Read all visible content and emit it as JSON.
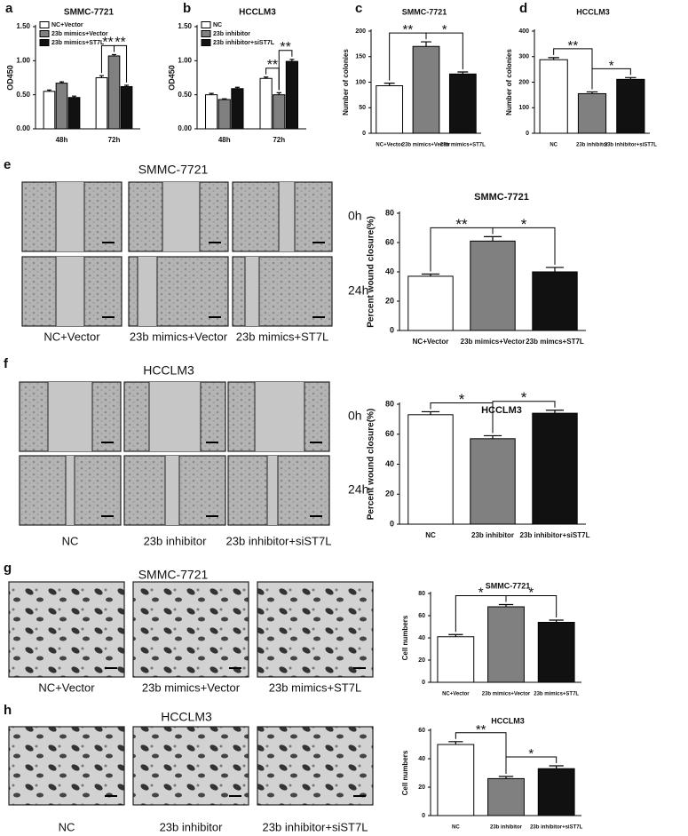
{
  "figure": {
    "panel_labels": [
      "a",
      "b",
      "c",
      "d",
      "e",
      "f",
      "g",
      "h"
    ],
    "image_rows": [
      {
        "title": "SMMC-7721",
        "times": [
          "0h",
          "24h"
        ],
        "captions": [
          "NC+Vector",
          "23b mimics+Vector",
          "23b mimics+ST7L"
        ]
      },
      {
        "title": "HCCLM3",
        "times": [
          "0h",
          "24h"
        ],
        "captions": [
          "NC",
          "23b inhibitor",
          "23b inhibitor+siST7L"
        ]
      },
      {
        "title": "SMMC-7721",
        "captions": [
          "NC+Vector",
          "23b mimics+Vector",
          "23b mimics+ST7L"
        ]
      },
      {
        "title": "HCCLM3",
        "captions": [
          "NC",
          "23b inhibitor",
          "23b inhibitor+siST7L"
        ]
      }
    ]
  },
  "chart_data": [
    {
      "type": "bar",
      "title": "SMMC-7721",
      "y_label": "OD450",
      "categories": [
        "48h",
        "72h"
      ],
      "series": [
        {
          "name": "NC+Vector",
          "color": "#ffffff",
          "values": [
            0.55,
            0.75
          ],
          "errors": [
            0.02,
            0.03
          ]
        },
        {
          "name": "23b mimics+Vector",
          "color": "#808080",
          "values": [
            0.67,
            1.07
          ],
          "errors": [
            0.02,
            0.02
          ]
        },
        {
          "name": "23b mimics+ST7L",
          "color": "#111111",
          "values": [
            0.46,
            0.62
          ],
          "errors": [
            0.02,
            0.02
          ]
        }
      ],
      "ylim": [
        0,
        1.5
      ],
      "yticks": [
        {
          "value": 0,
          "label": "0.00"
        },
        {
          "value": 0.5,
          "label": "0.50"
        },
        {
          "value": 1,
          "label": "1.00"
        },
        {
          "value": 1.5,
          "label": "1.50"
        }
      ],
      "annotations": [
        "**",
        "**"
      ]
    },
    {
      "type": "bar",
      "title": "HCCLM3",
      "y_label": "OD450",
      "categories": [
        "48h",
        "72h"
      ],
      "series": [
        {
          "name": "NC",
          "color": "#ffffff",
          "values": [
            0.5,
            0.74
          ],
          "errors": [
            0.02,
            0.02
          ]
        },
        {
          "name": "23b inhibitor",
          "color": "#808080",
          "values": [
            0.43,
            0.5
          ],
          "errors": [
            0.01,
            0.03
          ]
        },
        {
          "name": "23b inhibitor+siST7L",
          "color": "#111111",
          "values": [
            0.59,
            0.99
          ],
          "errors": [
            0.02,
            0.03
          ]
        }
      ],
      "ylim": [
        0,
        1.5
      ],
      "yticks": [
        {
          "value": 0,
          "label": "0.00"
        },
        {
          "value": 0.5,
          "label": "0.50"
        },
        {
          "value": 1,
          "label": "1.00"
        },
        {
          "value": 1.5,
          "label": "1.50"
        }
      ],
      "annotations": [
        "**",
        "**"
      ]
    },
    {
      "type": "bar",
      "title": "SMMC-7721",
      "y_label": "Number of colonies",
      "categories": [
        "NC+Vector",
        "23b mimics+Vector",
        "23b mimics+ST7L"
      ],
      "values": [
        93,
        170,
        116
      ],
      "errors": [
        5,
        9,
        4
      ],
      "colors": [
        "#ffffff",
        "#808080",
        "#111111"
      ],
      "ylim": [
        0,
        200
      ],
      "yticks": [
        0,
        50,
        100,
        150,
        200
      ],
      "annotations": [
        "**",
        "*"
      ]
    },
    {
      "type": "bar",
      "title": "HCCLM3",
      "y_label": "Number of colonies",
      "categories": [
        "NC",
        "23b inhibitor",
        "23b inhibitor+siST7L"
      ],
      "values": [
        288,
        155,
        211
      ],
      "errors": [
        8,
        7,
        7
      ],
      "colors": [
        "#ffffff",
        "#808080",
        "#111111"
      ],
      "ylim": [
        0,
        400
      ],
      "yticks": [
        0,
        100,
        200,
        300,
        400
      ],
      "annotations": [
        "**",
        "*"
      ]
    },
    {
      "type": "bar",
      "title": "SMMC-7721",
      "y_label": "Percent wound closure(%)",
      "categories": [
        "NC+Vector",
        "23b mimics+Vector",
        "23b mimcs+ST7L"
      ],
      "values": [
        37,
        61,
        40
      ],
      "errors": [
        1.5,
        3,
        3
      ],
      "colors": [
        "#ffffff",
        "#808080",
        "#111111"
      ],
      "ylim": [
        0,
        80
      ],
      "yticks": [
        0,
        20,
        40,
        60,
        80
      ],
      "annotations": [
        "**",
        "*"
      ]
    },
    {
      "type": "bar",
      "title": "HCCLM3",
      "y_label": "Percent wound closure(%)",
      "categories": [
        "NC",
        "23b inhibitor",
        "23b inhibitor+siST7L"
      ],
      "values": [
        73,
        57,
        74
      ],
      "errors": [
        2,
        2,
        2
      ],
      "colors": [
        "#ffffff",
        "#808080",
        "#111111"
      ],
      "ylim": [
        0,
        80
      ],
      "yticks": [
        0,
        20,
        40,
        60,
        80
      ],
      "annotations": [
        "*",
        "*"
      ]
    },
    {
      "type": "bar",
      "title": "SMMC-7721",
      "y_label": "Cell numbers",
      "categories": [
        "NC+Vector",
        "23b mimics+Vector",
        "23b mimics+ST7L"
      ],
      "values": [
        41,
        68,
        54
      ],
      "errors": [
        2,
        2,
        2
      ],
      "colors": [
        "#ffffff",
        "#808080",
        "#111111"
      ],
      "ylim": [
        0,
        80
      ],
      "yticks": [
        0,
        20,
        40,
        60,
        80
      ],
      "annotations": [
        "*",
        "*"
      ]
    },
    {
      "type": "bar",
      "title": "HCCLM3",
      "y_label": "Cell numbers",
      "categories": [
        "NC",
        "23b inhibitor",
        "23b inhibitor+siST7L"
      ],
      "values": [
        50,
        26,
        33
      ],
      "errors": [
        2,
        1.5,
        2
      ],
      "colors": [
        "#ffffff",
        "#808080",
        "#111111"
      ],
      "ylim": [
        0,
        60
      ],
      "yticks": [
        0,
        20,
        40,
        60
      ],
      "annotations": [
        "**",
        "*"
      ]
    }
  ]
}
